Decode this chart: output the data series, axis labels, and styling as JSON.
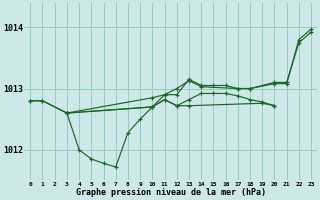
{
  "bg_color": "#cce8e8",
  "grid_color": "#99ccbb",
  "line_color": "#1a6622",
  "marker_color": "#1a6622",
  "xlabel": "Graphe pression niveau de la mer (hPa)",
  "ylabel_ticks": [
    1012,
    1013,
    1014
  ],
  "xlim": [
    -0.5,
    23.5
  ],
  "ylim": [
    1011.5,
    1014.4
  ],
  "xtick_labels": [
    "0",
    "1",
    "2",
    "3",
    "4",
    "5",
    "6",
    "7",
    "8",
    "9",
    "10",
    "11",
    "12",
    "13",
    "14",
    "15",
    "16",
    "17",
    "18",
    "19",
    "20",
    "21",
    "22",
    "23"
  ],
  "series": [
    {
      "x": [
        0,
        1,
        3,
        10,
        11,
        12,
        13,
        14,
        15,
        16,
        17,
        18,
        20,
        21,
        22,
        23
      ],
      "y": [
        1012.8,
        1012.8,
        1012.6,
        1012.85,
        1012.9,
        1012.9,
        1013.15,
        1013.05,
        1013.05,
        1013.05,
        1013.0,
        1013.0,
        1013.1,
        1013.1,
        1013.75,
        1013.92
      ]
    },
    {
      "x": [
        3,
        4,
        5,
        6,
        7,
        8,
        9,
        10,
        11,
        12,
        13,
        14,
        15,
        16,
        17,
        18,
        19,
        20
      ],
      "y": [
        1012.6,
        1012.0,
        1011.85,
        1011.78,
        1011.72,
        1012.28,
        1012.5,
        1012.7,
        1012.82,
        1012.72,
        1012.82,
        1012.92,
        1012.92,
        1012.92,
        1012.88,
        1012.82,
        1012.78,
        1012.72
      ]
    },
    {
      "x": [
        3,
        10,
        11,
        12,
        13,
        14,
        17,
        18,
        20,
        21,
        22,
        23
      ],
      "y": [
        1012.6,
        1012.7,
        1012.9,
        1013.0,
        1013.13,
        1013.03,
        1013.0,
        1013.0,
        1013.08,
        1013.08,
        1013.8,
        1013.97
      ]
    },
    {
      "x": [
        0,
        1,
        3,
        10,
        11,
        12,
        13,
        19,
        20
      ],
      "y": [
        1012.8,
        1012.8,
        1012.6,
        1012.7,
        1012.82,
        1012.72,
        1012.72,
        1012.76,
        1012.72
      ]
    }
  ]
}
